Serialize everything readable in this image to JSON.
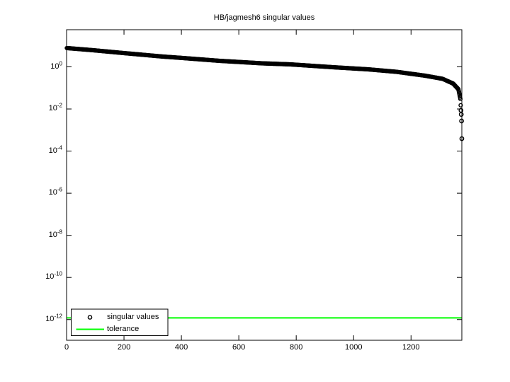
{
  "figure": {
    "background": "#ffffff"
  },
  "chart_data": {
    "type": "scatter",
    "title": "HB/jagmesh6 singular values",
    "xlabel": "",
    "ylabel": "",
    "grid": false,
    "x_axis": {
      "min": 0,
      "max": 1377,
      "ticks": [
        0,
        200,
        400,
        600,
        800,
        1000,
        1200
      ]
    },
    "y_axis": {
      "scale": "log",
      "tick_exponents": [
        0,
        -2,
        -4,
        -6,
        -8,
        -10,
        -12
      ],
      "top_exponent_approx": 1.75,
      "bottom_exponent_approx": -13
    },
    "series": [
      {
        "name": "singular values",
        "type": "scatter",
        "marker": "open-circle",
        "color": "#000000",
        "n_points": 1377,
        "envelope_points": [
          [
            1,
            7.8
          ],
          [
            90,
            6.2
          ],
          [
            200,
            4.5
          ],
          [
            336,
            3.07
          ],
          [
            405,
            2.63
          ],
          [
            533,
            1.93
          ],
          [
            681,
            1.47
          ],
          [
            780,
            1.31
          ],
          [
            928,
            0.96
          ],
          [
            1051,
            0.76
          ],
          [
            1150,
            0.58
          ],
          [
            1249,
            0.38
          ],
          [
            1310,
            0.27
          ],
          [
            1347,
            0.16
          ],
          [
            1365,
            0.087
          ],
          [
            1372,
            0.03
          ],
          [
            1373,
            0.015
          ]
        ],
        "tail_points": [
          [
            1374,
            0.0086
          ],
          [
            1375,
            0.0055
          ],
          [
            1376,
            0.0027
          ],
          [
            1377,
            0.00039
          ]
        ]
      },
      {
        "name": "tolerance",
        "type": "hline",
        "color": "#00ff00",
        "value": 1.2e-12
      }
    ],
    "legend": {
      "position": "southwest",
      "entries": [
        {
          "label": "singular values",
          "glyph": "open-circle-marker",
          "color": "#000000"
        },
        {
          "label": "tolerance",
          "glyph": "line",
          "color": "#00ff00"
        }
      ]
    }
  }
}
